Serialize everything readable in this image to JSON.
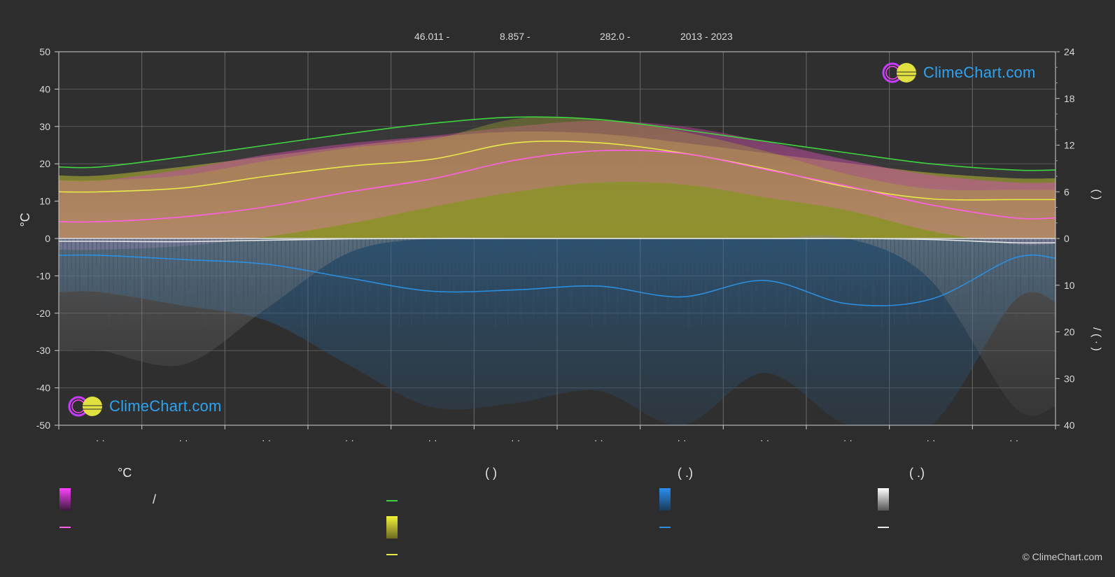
{
  "header": {
    "lat": "46.011 -",
    "lon": "8.857 -",
    "elev": "282.0 -",
    "years": "2013 - 2023"
  },
  "axis": {
    "left_label": "°C",
    "left_ticks": [
      "50",
      "40",
      "30",
      "20",
      "10",
      "0",
      "-10",
      "-20",
      "-30",
      "-40",
      "-50"
    ],
    "right_ticks_top": [
      "24",
      "18",
      "12",
      "6",
      "0"
    ],
    "right_ticks_bottom": [
      "10",
      "20",
      "30",
      "40"
    ],
    "right_label_top": "(   )",
    "right_label_bottom": "/   (  ·  )",
    "month_ticks": [
      "· ·",
      "· ·",
      "· ·",
      "· ·",
      "· ·",
      "· ·",
      "· ·",
      "· ·",
      "· ·",
      "· ·",
      "· ·",
      "· ·"
    ]
  },
  "legend": {
    "col1_title": "°C",
    "col1_slash": "/",
    "col2_title": "(            )",
    "col3_title": "(    .)",
    "col4_title": "(    .)"
  },
  "watermark": {
    "text_top": "ClimeChart.com",
    "text_bottom": "ClimeChart.com"
  },
  "copyright": "© ClimeChart.com",
  "colors": {
    "daylight": "#3fd43f",
    "sunshine": "#e8e84a",
    "temp_mean": "#ff5fe6",
    "rain": "#2b8fe0",
    "snow": "#e8e8e8",
    "temp_band": "#d65ab4",
    "sun_band": "#a9a93a"
  },
  "chart_data": {
    "type": "area",
    "x": [
      "1",
      "2",
      "3",
      "4",
      "5",
      "6",
      "7",
      "8",
      "9",
      "10",
      "11",
      "12"
    ],
    "left_axis_range": [
      -50,
      50
    ],
    "right_top_range": [
      0,
      24
    ],
    "right_bottom_range": [
      0,
      40
    ],
    "series": [
      {
        "key": "daylight_hours",
        "axis": "right_top",
        "values": [
          9.2,
          10.5,
          12.0,
          13.5,
          14.8,
          15.6,
          15.3,
          14.0,
          12.5,
          11.0,
          9.6,
          8.8
        ]
      },
      {
        "key": "sunshine_hours",
        "axis": "right_top",
        "values": [
          6.0,
          6.5,
          8.0,
          9.3,
          10.2,
          12.3,
          12.3,
          11.0,
          9.0,
          6.6,
          5.1,
          5.0
        ]
      },
      {
        "key": "temp_mean",
        "axis": "left",
        "values": [
          4.5,
          5.8,
          8.5,
          12.5,
          16.0,
          21.0,
          23.5,
          22.8,
          18.5,
          14.0,
          9.0,
          5.5
        ]
      },
      {
        "key": "temp_max_band",
        "axis": "left",
        "values": [
          15.5,
          18.5,
          22.5,
          25.5,
          27.5,
          30.0,
          31.5,
          30.0,
          26.0,
          21.0,
          17.0,
          15.0
        ]
      },
      {
        "key": "temp_min_band",
        "axis": "left",
        "values": [
          -3.0,
          -2.0,
          0.5,
          4.0,
          8.5,
          12.5,
          15.0,
          14.5,
          11.0,
          7.5,
          2.0,
          -1.5
        ]
      },
      {
        "key": "rain_mm_day",
        "axis": "right_bottom",
        "values": [
          3.6,
          4.5,
          5.5,
          8.5,
          11.3,
          11.0,
          10.2,
          12.5,
          9.0,
          14.0,
          13.0,
          4.2
        ]
      },
      {
        "key": "snow_mm_day",
        "axis": "right_bottom",
        "values": [
          0.8,
          0.9,
          0.5,
          0.1,
          0.0,
          0.0,
          0.0,
          0.0,
          0.0,
          0.0,
          0.3,
          1.2
        ]
      }
    ]
  }
}
